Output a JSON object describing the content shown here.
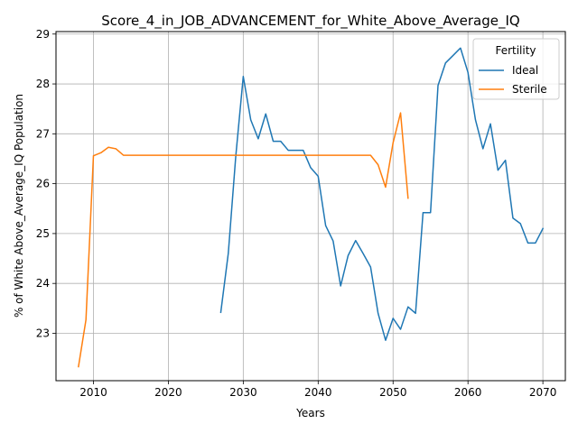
{
  "chart_data": {
    "type": "line",
    "title": "Score_4_in_JOB_ADVANCEMENT_for_White_Above_Average_IQ",
    "xlabel": "Years",
    "ylabel": "% of White Above_Average_IQ Population",
    "xlim": [
      2005,
      2073
    ],
    "ylim": [
      22.05,
      29.05
    ],
    "xticks": [
      2010,
      2020,
      2030,
      2040,
      2050,
      2060,
      2070
    ],
    "yticks": [
      23,
      24,
      25,
      26,
      27,
      28,
      29
    ],
    "grid": true,
    "legend": {
      "title": "Fertility",
      "placement": "top-right"
    },
    "series": [
      {
        "name": "Ideal",
        "color": "#1f77b4",
        "x": [
          2027,
          2028,
          2029,
          2030,
          2031,
          2032,
          2033,
          2034,
          2035,
          2036,
          2037,
          2038,
          2039,
          2040,
          2041,
          2042,
          2043,
          2044,
          2045,
          2046,
          2047,
          2048,
          2049,
          2050,
          2051,
          2052,
          2053,
          2054,
          2055,
          2056,
          2057,
          2058,
          2059,
          2060,
          2061,
          2062,
          2063,
          2064,
          2065,
          2066,
          2067,
          2068,
          2069,
          2070
        ],
        "y": [
          23.42,
          24.6,
          26.55,
          28.15,
          27.28,
          26.9,
          27.4,
          26.85,
          26.85,
          26.67,
          26.67,
          26.67,
          26.32,
          26.15,
          25.16,
          24.85,
          23.95,
          24.56,
          24.86,
          24.6,
          24.33,
          23.4,
          22.86,
          23.3,
          23.08,
          23.53,
          23.4,
          25.42,
          25.42,
          27.97,
          28.42,
          28.57,
          28.72,
          28.23,
          27.28,
          26.7,
          27.2,
          26.27,
          26.47,
          25.31,
          25.2,
          24.81,
          24.81,
          25.1
        ]
      },
      {
        "name": "Sterile",
        "color": "#ff7f0e",
        "x": [
          2008,
          2009,
          2010,
          2011,
          2012,
          2013,
          2014,
          2015,
          2016,
          2017,
          2018,
          2019,
          2020,
          2021,
          2022,
          2023,
          2024,
          2025,
          2026,
          2027,
          2028,
          2029,
          2030,
          2031,
          2032,
          2033,
          2034,
          2035,
          2036,
          2037,
          2038,
          2039,
          2040,
          2041,
          2042,
          2043,
          2044,
          2045,
          2046,
          2047,
          2048,
          2049,
          2050,
          2051,
          2052
        ],
        "y": [
          22.33,
          23.27,
          26.56,
          26.62,
          26.73,
          26.7,
          26.57,
          26.57,
          26.57,
          26.57,
          26.57,
          26.57,
          26.57,
          26.57,
          26.57,
          26.57,
          26.57,
          26.57,
          26.57,
          26.57,
          26.57,
          26.57,
          26.57,
          26.57,
          26.57,
          26.57,
          26.57,
          26.57,
          26.57,
          26.57,
          26.57,
          26.57,
          26.57,
          26.57,
          26.57,
          26.57,
          26.57,
          26.57,
          26.57,
          26.57,
          26.38,
          25.93,
          26.82,
          27.42,
          25.71
        ]
      }
    ]
  }
}
